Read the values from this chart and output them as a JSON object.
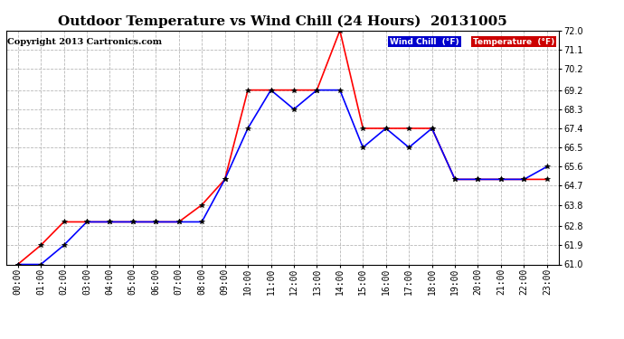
{
  "title": "Outdoor Temperature vs Wind Chill (24 Hours)  20131005",
  "copyright": "Copyright 2013 Cartronics.com",
  "ylim": [
    61.0,
    72.0
  ],
  "yticks": [
    61.0,
    61.9,
    62.8,
    63.8,
    64.7,
    65.6,
    66.5,
    67.4,
    68.3,
    69.2,
    70.2,
    71.1,
    72.0
  ],
  "hours": [
    "00:00",
    "01:00",
    "02:00",
    "03:00",
    "04:00",
    "05:00",
    "06:00",
    "07:00",
    "08:00",
    "09:00",
    "10:00",
    "11:00",
    "12:00",
    "13:00",
    "14:00",
    "15:00",
    "16:00",
    "17:00",
    "18:00",
    "19:00",
    "20:00",
    "21:00",
    "22:00",
    "23:00"
  ],
  "temperature": [
    61.0,
    61.9,
    63.0,
    63.0,
    63.0,
    63.0,
    63.0,
    63.0,
    63.8,
    65.0,
    69.2,
    69.2,
    69.2,
    69.2,
    72.0,
    67.4,
    67.4,
    67.4,
    67.4,
    65.0,
    65.0,
    65.0,
    65.0,
    65.0
  ],
  "wind_chill": [
    61.0,
    61.0,
    61.9,
    63.0,
    63.0,
    63.0,
    63.0,
    63.0,
    63.0,
    65.0,
    67.4,
    69.2,
    68.3,
    69.2,
    69.2,
    66.5,
    67.4,
    66.5,
    67.4,
    65.0,
    65.0,
    65.0,
    65.0,
    65.6
  ],
  "temp_color": "#ff0000",
  "wind_color": "#0000ff",
  "marker_color": "#000000",
  "bg_color": "#ffffff",
  "grid_color": "#b0b0b0",
  "title_fontsize": 11,
  "copyright_fontsize": 7,
  "tick_fontsize": 7,
  "legend_wind_bg": "#0000cc",
  "legend_temp_bg": "#cc0000"
}
